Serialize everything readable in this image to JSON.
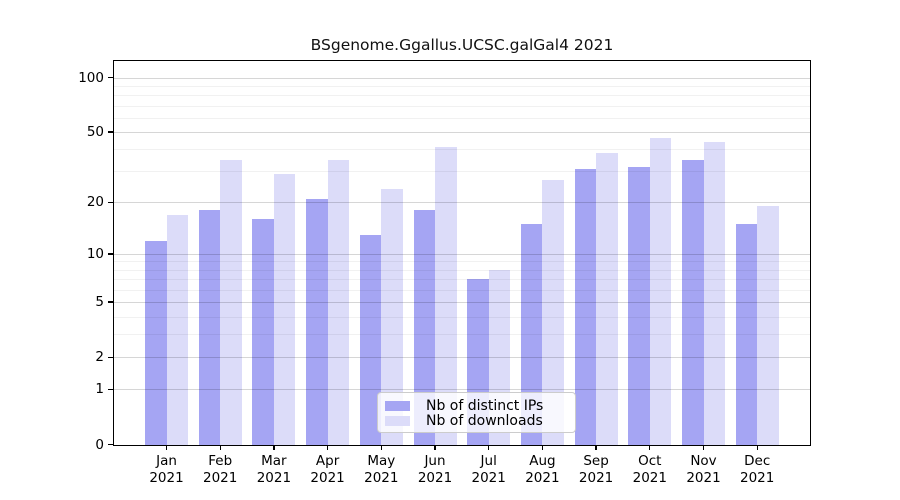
{
  "chart_data": {
    "type": "bar",
    "title": "BSgenome.Ggallus.UCSC.galGal4 2021",
    "categories": [
      "Jan",
      "Feb",
      "Mar",
      "Apr",
      "May",
      "Jun",
      "Jul",
      "Aug",
      "Sep",
      "Oct",
      "Nov",
      "Dec"
    ],
    "year_label": "2021",
    "series": [
      {
        "name": "Nb of distinct IPs",
        "color": "#a5a5f3",
        "values": [
          12,
          18,
          16,
          21,
          13,
          18,
          7,
          15,
          31,
          32,
          35,
          15
        ]
      },
      {
        "name": "Nb of downloads",
        "color": "#dcdcf9",
        "values": [
          17,
          35,
          29,
          35,
          24,
          41,
          8,
          27,
          38,
          46,
          44,
          19
        ]
      }
    ],
    "ylabel": "",
    "xlabel": "",
    "yscale": "log1p",
    "yticks": [
      0,
      1,
      2,
      5,
      10,
      20,
      50,
      100
    ],
    "minor_yticks": [
      3,
      4,
      6,
      7,
      8,
      9,
      30,
      40,
      60,
      70,
      80,
      90
    ],
    "ylim": [
      0,
      123
    ],
    "grid": true,
    "legend_position": "lower center",
    "colors": {
      "background": "#ffffff",
      "axis": "#000000",
      "major_grid": "#d8d8d8",
      "minor_grid": "#f0f0f0"
    }
  }
}
